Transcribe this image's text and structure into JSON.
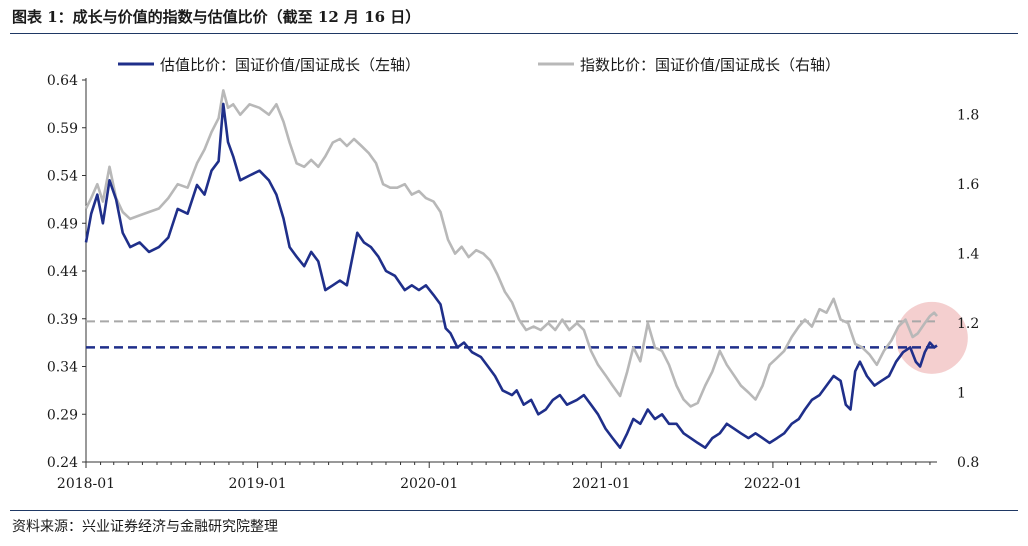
{
  "header": {
    "title": "图表 1：成长与价值的指数与估值比价（截至 12 月 16 日）"
  },
  "footer": {
    "source": "资料来源：兴业证券经济与金融研究院整理"
  },
  "chart_data": {
    "type": "line",
    "x_tick_labels": [
      "2018-01",
      "2019-01",
      "2020-01",
      "2021-01",
      "2022-01"
    ],
    "x_range": [
      "2018-01-01",
      "2022-12-16"
    ],
    "y_left": {
      "ticks": [
        "0.64",
        "0.59",
        "0.54",
        "0.49",
        "0.44",
        "0.39",
        "0.34",
        "0.29",
        "0.24"
      ],
      "range": [
        0.24,
        0.64
      ]
    },
    "y_right": {
      "ticks": [
        "1.8",
        "1.6",
        "1.4",
        "1.2",
        "1",
        "0.8"
      ],
      "range": [
        0.8,
        1.9
      ]
    },
    "series": [
      {
        "name": "估值比价：国证价值/国证成长（左轴）",
        "axis": "left",
        "color": "#1f2f8a",
        "points": [
          [
            "2018-01-01",
            0.47
          ],
          [
            "2018-01-12",
            0.5
          ],
          [
            "2018-01-25",
            0.52
          ],
          [
            "2018-02-06",
            0.49
          ],
          [
            "2018-02-20",
            0.535
          ],
          [
            "2018-03-06",
            0.515
          ],
          [
            "2018-03-20",
            0.48
          ],
          [
            "2018-04-05",
            0.465
          ],
          [
            "2018-04-25",
            0.47
          ],
          [
            "2018-05-15",
            0.46
          ],
          [
            "2018-06-05",
            0.465
          ],
          [
            "2018-06-25",
            0.475
          ],
          [
            "2018-07-15",
            0.505
          ],
          [
            "2018-08-05",
            0.5
          ],
          [
            "2018-08-25",
            0.53
          ],
          [
            "2018-09-10",
            0.52
          ],
          [
            "2018-09-25",
            0.545
          ],
          [
            "2018-10-10",
            0.555
          ],
          [
            "2018-10-20",
            0.615
          ],
          [
            "2018-10-30",
            0.575
          ],
          [
            "2018-11-10",
            0.56
          ],
          [
            "2018-11-25",
            0.535
          ],
          [
            "2018-12-15",
            0.54
          ],
          [
            "2019-01-05",
            0.545
          ],
          [
            "2019-01-25",
            0.535
          ],
          [
            "2019-02-10",
            0.52
          ],
          [
            "2019-02-25",
            0.495
          ],
          [
            "2019-03-10",
            0.465
          ],
          [
            "2019-03-25",
            0.455
          ],
          [
            "2019-04-10",
            0.445
          ],
          [
            "2019-04-25",
            0.46
          ],
          [
            "2019-05-10",
            0.45
          ],
          [
            "2019-05-25",
            0.42
          ],
          [
            "2019-06-10",
            0.425
          ],
          [
            "2019-06-25",
            0.43
          ],
          [
            "2019-07-10",
            0.425
          ],
          [
            "2019-07-20",
            0.45
          ],
          [
            "2019-08-01",
            0.48
          ],
          [
            "2019-08-15",
            0.47
          ],
          [
            "2019-08-30",
            0.465
          ],
          [
            "2019-09-15",
            0.455
          ],
          [
            "2019-10-01",
            0.44
          ],
          [
            "2019-10-20",
            0.435
          ],
          [
            "2019-11-10",
            0.42
          ],
          [
            "2019-11-25",
            0.425
          ],
          [
            "2019-12-10",
            0.42
          ],
          [
            "2019-12-25",
            0.425
          ],
          [
            "2020-01-10",
            0.415
          ],
          [
            "2020-01-25",
            0.405
          ],
          [
            "2020-02-05",
            0.38
          ],
          [
            "2020-02-15",
            0.375
          ],
          [
            "2020-03-01",
            0.36
          ],
          [
            "2020-03-15",
            0.365
          ],
          [
            "2020-04-01",
            0.355
          ],
          [
            "2020-04-20",
            0.35
          ],
          [
            "2020-05-05",
            0.34
          ],
          [
            "2020-05-20",
            0.33
          ],
          [
            "2020-06-05",
            0.315
          ],
          [
            "2020-06-25",
            0.31
          ],
          [
            "2020-07-05",
            0.315
          ],
          [
            "2020-07-20",
            0.3
          ],
          [
            "2020-08-05",
            0.305
          ],
          [
            "2020-08-20",
            0.29
          ],
          [
            "2020-09-05",
            0.295
          ],
          [
            "2020-09-20",
            0.305
          ],
          [
            "2020-10-05",
            0.31
          ],
          [
            "2020-10-20",
            0.3
          ],
          [
            "2020-11-10",
            0.305
          ],
          [
            "2020-11-25",
            0.31
          ],
          [
            "2020-12-10",
            0.3
          ],
          [
            "2020-12-25",
            0.29
          ],
          [
            "2021-01-10",
            0.275
          ],
          [
            "2021-01-25",
            0.265
          ],
          [
            "2021-02-10",
            0.255
          ],
          [
            "2021-02-25",
            0.27
          ],
          [
            "2021-03-10",
            0.285
          ],
          [
            "2021-03-25",
            0.28
          ],
          [
            "2021-04-10",
            0.295
          ],
          [
            "2021-04-25",
            0.285
          ],
          [
            "2021-05-10",
            0.29
          ],
          [
            "2021-05-25",
            0.28
          ],
          [
            "2021-06-10",
            0.28
          ],
          [
            "2021-06-25",
            0.27
          ],
          [
            "2021-07-10",
            0.265
          ],
          [
            "2021-07-25",
            0.26
          ],
          [
            "2021-08-10",
            0.255
          ],
          [
            "2021-08-25",
            0.265
          ],
          [
            "2021-09-10",
            0.27
          ],
          [
            "2021-09-25",
            0.28
          ],
          [
            "2021-10-10",
            0.275
          ],
          [
            "2021-10-25",
            0.27
          ],
          [
            "2021-11-10",
            0.265
          ],
          [
            "2021-11-25",
            0.27
          ],
          [
            "2021-12-10",
            0.265
          ],
          [
            "2021-12-25",
            0.26
          ],
          [
            "2022-01-10",
            0.265
          ],
          [
            "2022-01-25",
            0.27
          ],
          [
            "2022-02-10",
            0.28
          ],
          [
            "2022-02-25",
            0.285
          ],
          [
            "2022-03-10",
            0.295
          ],
          [
            "2022-03-25",
            0.305
          ],
          [
            "2022-04-10",
            0.31
          ],
          [
            "2022-04-25",
            0.32
          ],
          [
            "2022-05-10",
            0.33
          ],
          [
            "2022-05-25",
            0.325
          ],
          [
            "2022-06-05",
            0.3
          ],
          [
            "2022-06-15",
            0.295
          ],
          [
            "2022-06-25",
            0.335
          ],
          [
            "2022-07-05",
            0.345
          ],
          [
            "2022-07-20",
            0.33
          ],
          [
            "2022-08-05",
            0.32
          ],
          [
            "2022-08-20",
            0.325
          ],
          [
            "2022-09-05",
            0.33
          ],
          [
            "2022-09-20",
            0.345
          ],
          [
            "2022-10-05",
            0.355
          ],
          [
            "2022-10-20",
            0.36
          ],
          [
            "2022-11-01",
            0.345
          ],
          [
            "2022-11-10",
            0.34
          ],
          [
            "2022-11-20",
            0.355
          ],
          [
            "2022-12-01",
            0.365
          ],
          [
            "2022-12-10",
            0.36
          ],
          [
            "2022-12-16",
            0.362
          ]
        ]
      },
      {
        "name": "指数比价：国证价值/国证成长（右轴）",
        "axis": "right",
        "color": "#b8b8b8",
        "points": [
          [
            "2018-01-01",
            1.53
          ],
          [
            "2018-01-12",
            1.56
          ],
          [
            "2018-01-25",
            1.6
          ],
          [
            "2018-02-06",
            1.55
          ],
          [
            "2018-02-20",
            1.65
          ],
          [
            "2018-03-06",
            1.56
          ],
          [
            "2018-03-20",
            1.52
          ],
          [
            "2018-04-05",
            1.5
          ],
          [
            "2018-04-25",
            1.51
          ],
          [
            "2018-05-15",
            1.52
          ],
          [
            "2018-06-05",
            1.53
          ],
          [
            "2018-06-25",
            1.56
          ],
          [
            "2018-07-15",
            1.6
          ],
          [
            "2018-08-05",
            1.59
          ],
          [
            "2018-08-25",
            1.66
          ],
          [
            "2018-09-10",
            1.7
          ],
          [
            "2018-09-25",
            1.75
          ],
          [
            "2018-10-10",
            1.79
          ],
          [
            "2018-10-20",
            1.87
          ],
          [
            "2018-10-30",
            1.82
          ],
          [
            "2018-11-10",
            1.83
          ],
          [
            "2018-11-25",
            1.8
          ],
          [
            "2018-12-15",
            1.83
          ],
          [
            "2019-01-05",
            1.82
          ],
          [
            "2019-01-25",
            1.8
          ],
          [
            "2019-02-10",
            1.83
          ],
          [
            "2019-02-25",
            1.78
          ],
          [
            "2019-03-10",
            1.72
          ],
          [
            "2019-03-25",
            1.66
          ],
          [
            "2019-04-10",
            1.65
          ],
          [
            "2019-04-25",
            1.67
          ],
          [
            "2019-05-10",
            1.65
          ],
          [
            "2019-05-25",
            1.68
          ],
          [
            "2019-06-10",
            1.72
          ],
          [
            "2019-06-25",
            1.73
          ],
          [
            "2019-07-10",
            1.71
          ],
          [
            "2019-07-25",
            1.73
          ],
          [
            "2019-08-10",
            1.71
          ],
          [
            "2019-08-25",
            1.69
          ],
          [
            "2019-09-10",
            1.66
          ],
          [
            "2019-09-25",
            1.6
          ],
          [
            "2019-10-10",
            1.59
          ],
          [
            "2019-10-25",
            1.59
          ],
          [
            "2019-11-10",
            1.6
          ],
          [
            "2019-11-25",
            1.57
          ],
          [
            "2019-12-10",
            1.58
          ],
          [
            "2019-12-25",
            1.56
          ],
          [
            "2020-01-10",
            1.55
          ],
          [
            "2020-01-25",
            1.52
          ],
          [
            "2020-02-10",
            1.44
          ],
          [
            "2020-02-25",
            1.4
          ],
          [
            "2020-03-10",
            1.42
          ],
          [
            "2020-03-25",
            1.39
          ],
          [
            "2020-04-10",
            1.41
          ],
          [
            "2020-04-25",
            1.4
          ],
          [
            "2020-05-10",
            1.38
          ],
          [
            "2020-05-25",
            1.34
          ],
          [
            "2020-06-10",
            1.29
          ],
          [
            "2020-06-25",
            1.26
          ],
          [
            "2020-07-10",
            1.21
          ],
          [
            "2020-07-25",
            1.18
          ],
          [
            "2020-08-10",
            1.19
          ],
          [
            "2020-08-25",
            1.18
          ],
          [
            "2020-09-10",
            1.2
          ],
          [
            "2020-09-25",
            1.18
          ],
          [
            "2020-10-10",
            1.21
          ],
          [
            "2020-10-25",
            1.18
          ],
          [
            "2020-11-10",
            1.2
          ],
          [
            "2020-11-25",
            1.18
          ],
          [
            "2020-12-10",
            1.12
          ],
          [
            "2020-12-25",
            1.08
          ],
          [
            "2021-01-10",
            1.05
          ],
          [
            "2021-01-25",
            1.02
          ],
          [
            "2021-02-10",
            0.99
          ],
          [
            "2021-02-25",
            1.06
          ],
          [
            "2021-03-10",
            1.13
          ],
          [
            "2021-03-25",
            1.09
          ],
          [
            "2021-04-10",
            1.2
          ],
          [
            "2021-04-25",
            1.13
          ],
          [
            "2021-05-10",
            1.12
          ],
          [
            "2021-05-25",
            1.08
          ],
          [
            "2021-06-10",
            1.02
          ],
          [
            "2021-06-25",
            0.98
          ],
          [
            "2021-07-10",
            0.96
          ],
          [
            "2021-07-25",
            0.97
          ],
          [
            "2021-08-10",
            1.02
          ],
          [
            "2021-08-25",
            1.06
          ],
          [
            "2021-09-10",
            1.12
          ],
          [
            "2021-09-25",
            1.08
          ],
          [
            "2021-10-10",
            1.05
          ],
          [
            "2021-10-25",
            1.02
          ],
          [
            "2021-11-10",
            1.0
          ],
          [
            "2021-11-25",
            0.98
          ],
          [
            "2021-12-10",
            1.02
          ],
          [
            "2021-12-25",
            1.08
          ],
          [
            "2022-01-10",
            1.1
          ],
          [
            "2022-01-25",
            1.12
          ],
          [
            "2022-02-10",
            1.16
          ],
          [
            "2022-02-25",
            1.19
          ],
          [
            "2022-03-10",
            1.21
          ],
          [
            "2022-03-25",
            1.19
          ],
          [
            "2022-04-10",
            1.24
          ],
          [
            "2022-04-25",
            1.23
          ],
          [
            "2022-05-10",
            1.27
          ],
          [
            "2022-05-25",
            1.21
          ],
          [
            "2022-06-10",
            1.2
          ],
          [
            "2022-06-25",
            1.14
          ],
          [
            "2022-07-10",
            1.13
          ],
          [
            "2022-07-25",
            1.11
          ],
          [
            "2022-08-10",
            1.08
          ],
          [
            "2022-08-25",
            1.12
          ],
          [
            "2022-09-10",
            1.15
          ],
          [
            "2022-09-25",
            1.19
          ],
          [
            "2022-10-10",
            1.21
          ],
          [
            "2022-10-25",
            1.16
          ],
          [
            "2022-11-05",
            1.17
          ],
          [
            "2022-11-20",
            1.2
          ],
          [
            "2022-12-01",
            1.22
          ],
          [
            "2022-12-10",
            1.23
          ],
          [
            "2022-12-16",
            1.22
          ]
        ]
      }
    ],
    "reference_lines": [
      {
        "axis": "left",
        "value": 0.36,
        "color": "#1f2f8a",
        "style": "dashed"
      },
      {
        "axis": "right",
        "value": 1.205,
        "color": "#a8a8a8",
        "style": "dashed"
      }
    ],
    "highlight": {
      "type": "circle",
      "x": "2022-12-05",
      "axis": "left",
      "y": 0.37,
      "color": "#f2c7c7"
    },
    "legend_placement": "top",
    "grid": false
  }
}
